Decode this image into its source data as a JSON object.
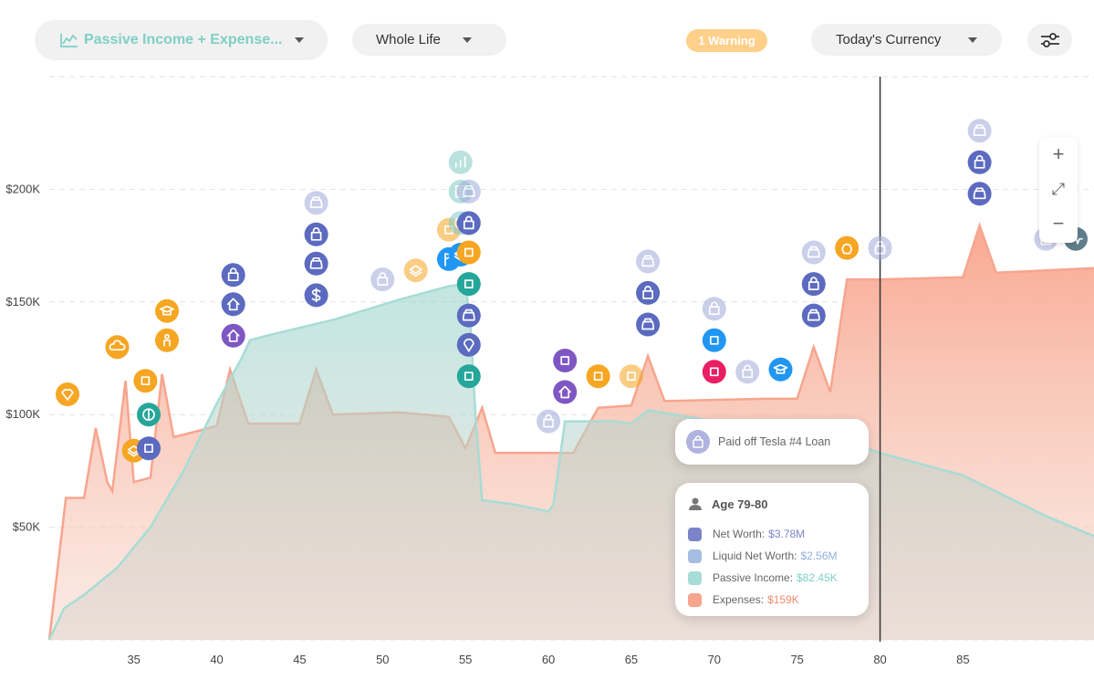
{
  "toolbar": {
    "metric_label": "Passive Income + Expense...",
    "range_label": "Whole Life",
    "warning_label": "1 Warning",
    "currency_label": "Today's Currency",
    "accent_color": "#7fd0c6",
    "warning_color": "#ffd08a"
  },
  "zoom": {
    "in": "+",
    "fit": "⤢",
    "out": "−"
  },
  "event_card": {
    "text": "Paid off Tesla #4 Loan",
    "icon": "loan-icon"
  },
  "tooltip": {
    "age_label": "Age 79-80",
    "rows": [
      {
        "label": "Net Worth:",
        "value": "$3.78M",
        "color": "#7b83c9"
      },
      {
        "label": "Liquid Net Worth:",
        "value": "$2.56M",
        "color": "#a5bde0"
      },
      {
        "label": "Passive Income:",
        "value": "$82.45K",
        "color": "#a8dcd6"
      },
      {
        "label": "Expenses:",
        "value": "$159K",
        "color": "#f7a58e"
      }
    ]
  },
  "chart_data": {
    "type": "area",
    "x_ticks": [
      35,
      40,
      45,
      50,
      55,
      60,
      65,
      70,
      75,
      80,
      85
    ],
    "y_ticks": [
      {
        "value": 50000,
        "label": "$50K"
      },
      {
        "value": 100000,
        "label": "$100K"
      },
      {
        "value": 150000,
        "label": "$150K"
      },
      {
        "value": 200000,
        "label": "$200K"
      }
    ],
    "xlim": [
      29.9,
      92.9
    ],
    "ylim": [
      0,
      250000
    ],
    "cursor_age": 80,
    "series": [
      {
        "color": "#a8dcd6",
        "points": [
          [
            29.9,
            0
          ],
          [
            30.8,
            14000
          ],
          [
            32,
            20000
          ],
          [
            34,
            32000
          ],
          [
            36,
            50000
          ],
          [
            38,
            75000
          ],
          [
            40,
            105000
          ],
          [
            41.5,
            125000
          ],
          [
            42,
            133000
          ],
          [
            43,
            135000
          ],
          [
            47,
            142000
          ],
          [
            51,
            151000
          ],
          [
            54,
            157000
          ],
          [
            55,
            158000
          ],
          [
            55.3,
            140000
          ],
          [
            55.6,
            100000
          ],
          [
            56,
            62000
          ],
          [
            58,
            60000
          ],
          [
            60,
            57000
          ],
          [
            60.3,
            60000
          ],
          [
            61,
            97000
          ],
          [
            64,
            97000
          ],
          [
            65,
            96000
          ],
          [
            66,
            102000
          ],
          [
            70,
            97000
          ],
          [
            75,
            95000
          ],
          [
            80,
            83000
          ],
          [
            85,
            73000
          ],
          [
            90,
            55000
          ],
          [
            92.9,
            46000
          ]
        ]
      },
      {
        "color": "#f7a58e",
        "points": [
          [
            29.9,
            0
          ],
          [
            30.9,
            63000
          ],
          [
            32,
            63000
          ],
          [
            32.7,
            94000
          ],
          [
            33.4,
            70000
          ],
          [
            33.7,
            66000
          ],
          [
            34.5,
            115000
          ],
          [
            35,
            70000
          ],
          [
            36,
            72000
          ],
          [
            36.7,
            118000
          ],
          [
            37.4,
            90000
          ],
          [
            38.5,
            92000
          ],
          [
            40,
            95000
          ],
          [
            40.8,
            120000
          ],
          [
            41.9,
            96000
          ],
          [
            45,
            96000
          ],
          [
            46,
            120000
          ],
          [
            47,
            100000
          ],
          [
            51,
            101000
          ],
          [
            54,
            99000
          ],
          [
            55,
            85000
          ],
          [
            56,
            103000
          ],
          [
            56.8,
            83000
          ],
          [
            61.5,
            83000
          ],
          [
            63,
            103000
          ],
          [
            65,
            104000
          ],
          [
            66,
            126000
          ],
          [
            67,
            106000
          ],
          [
            73,
            107000
          ],
          [
            75,
            107000
          ],
          [
            76,
            130000
          ],
          [
            77,
            110000
          ],
          [
            78,
            160000
          ],
          [
            80,
            160000
          ],
          [
            85,
            161000
          ],
          [
            86,
            184000
          ],
          [
            87,
            163000
          ],
          [
            92.9,
            165000
          ]
        ]
      }
    ]
  },
  "event_markers": [
    {
      "x": 34,
      "y": 130000,
      "icon": "cloud-upload-icon",
      "color": "#f6a623",
      "faded": false
    },
    {
      "x": 31,
      "y": 109000,
      "icon": "diamond-icon",
      "color": "#f6a623",
      "faded": false
    },
    {
      "x": 35.7,
      "y": 115000,
      "icon": "heart-plus-icon",
      "color": "#f6a623",
      "faded": false
    },
    {
      "x": 35.9,
      "y": 100000,
      "icon": "contrast-icon",
      "color": "#26a69a",
      "faded": false
    },
    {
      "x": 35,
      "y": 84000,
      "icon": "layers-icon",
      "color": "#f6a623",
      "faded": false
    },
    {
      "x": 35.9,
      "y": 85000,
      "icon": "rocket-icon",
      "color": "#5c6bc0",
      "faded": false
    },
    {
      "x": 37,
      "y": 146000,
      "icon": "graduation-cap-icon",
      "color": "#f6a623",
      "faded": false
    },
    {
      "x": 37,
      "y": 133000,
      "icon": "child-icon",
      "color": "#f6a623",
      "faded": false
    },
    {
      "x": 41,
      "y": 162000,
      "icon": "loan-icon",
      "color": "#5c6bc0",
      "faded": false
    },
    {
      "x": 41,
      "y": 149000,
      "icon": "house-icon",
      "color": "#5c6bc0",
      "faded": false
    },
    {
      "x": 41,
      "y": 135000,
      "icon": "house-search-icon",
      "color": "#7e57c2",
      "faded": false
    },
    {
      "x": 46,
      "y": 194000,
      "icon": "car-icon",
      "color": "#9fa8da",
      "faded": true
    },
    {
      "x": 46,
      "y": 180000,
      "icon": "loan-icon",
      "color": "#5c6bc0",
      "faded": false
    },
    {
      "x": 46,
      "y": 167000,
      "icon": "car-icon",
      "color": "#5c6bc0",
      "faded": false
    },
    {
      "x": 46,
      "y": 153000,
      "icon": "dollar-icon",
      "color": "#5c6bc0",
      "faded": false
    },
    {
      "x": 50,
      "y": 160000,
      "icon": "loan-icon",
      "color": "#9fa8da",
      "faded": true
    },
    {
      "x": 52,
      "y": 164000,
      "icon": "layers-icon",
      "color": "#f6a623",
      "faded": true
    },
    {
      "x": 54,
      "y": 182000,
      "icon": "gift-icon",
      "color": "#f6a623",
      "faded": true
    },
    {
      "x": 54.7,
      "y": 212000,
      "icon": "bar-chart-icon",
      "color": "#80cbc4",
      "faded": true
    },
    {
      "x": 54.7,
      "y": 199000,
      "icon": "building-icon",
      "color": "#80cbc4",
      "faded": true
    },
    {
      "x": 55.2,
      "y": 199000,
      "icon": "car-icon",
      "color": "#9fa8da",
      "faded": true
    },
    {
      "x": 54.7,
      "y": 185000,
      "icon": "contrast-icon",
      "color": "#80cbc4",
      "faded": true
    },
    {
      "x": 55.2,
      "y": 185000,
      "icon": "loan-icon",
      "color": "#5c6bc0",
      "faded": false
    },
    {
      "x": 54,
      "y": 169000,
      "icon": "flag-icon",
      "color": "#2196f3",
      "faded": false
    },
    {
      "x": 54.7,
      "y": 171000,
      "icon": "layers-icon",
      "color": "#2196f3",
      "faded": false
    },
    {
      "x": 55.2,
      "y": 172000,
      "icon": "heart-hands-icon",
      "color": "#f6a623",
      "faded": false
    },
    {
      "x": 55.2,
      "y": 158000,
      "icon": "person-clock-icon",
      "color": "#26a69a",
      "faded": false
    },
    {
      "x": 55.2,
      "y": 144000,
      "icon": "car-icon",
      "color": "#5c6bc0",
      "faded": false
    },
    {
      "x": 55.2,
      "y": 131000,
      "icon": "location-pin-icon",
      "color": "#5c6bc0",
      "faded": false
    },
    {
      "x": 55.2,
      "y": 117000,
      "icon": "palm-tree-icon",
      "color": "#26a69a",
      "faded": false
    },
    {
      "x": 60,
      "y": 97000,
      "icon": "loan-icon",
      "color": "#9fa8da",
      "faded": true
    },
    {
      "x": 61,
      "y": 124000,
      "icon": "cut-icon",
      "color": "#7e57c2",
      "faded": false
    },
    {
      "x": 61,
      "y": 110000,
      "icon": "house-search-icon",
      "color": "#7e57c2",
      "faded": false
    },
    {
      "x": 63,
      "y": 117000,
      "icon": "medical-bag-icon",
      "color": "#f6a623",
      "faded": false
    },
    {
      "x": 65,
      "y": 117000,
      "icon": "heart-hands-icon",
      "color": "#f6a623",
      "faded": true
    },
    {
      "x": 66,
      "y": 168000,
      "icon": "car-icon",
      "color": "#9fa8da",
      "faded": true
    },
    {
      "x": 66,
      "y": 154000,
      "icon": "loan-icon",
      "color": "#5c6bc0",
      "faded": false
    },
    {
      "x": 66,
      "y": 140000,
      "icon": "car-icon",
      "color": "#5c6bc0",
      "faded": false
    },
    {
      "x": 70,
      "y": 147000,
      "icon": "loan-icon",
      "color": "#9fa8da",
      "faded": true
    },
    {
      "x": 70,
      "y": 133000,
      "icon": "chart-hand-icon",
      "color": "#2196f3",
      "faded": false
    },
    {
      "x": 70,
      "y": 119000,
      "icon": "cut-icon",
      "color": "#e91e63",
      "faded": false
    },
    {
      "x": 72,
      "y": 119000,
      "icon": "loan-icon",
      "color": "#9fa8da",
      "faded": true
    },
    {
      "x": 74,
      "y": 120000,
      "icon": "graduation-cap-icon",
      "color": "#2196f3",
      "faded": false
    },
    {
      "x": 76,
      "y": 172000,
      "icon": "car-icon",
      "color": "#9fa8da",
      "faded": true
    },
    {
      "x": 76,
      "y": 158000,
      "icon": "loan-icon",
      "color": "#5c6bc0",
      "faded": false
    },
    {
      "x": 76,
      "y": 144000,
      "icon": "car-icon",
      "color": "#5c6bc0",
      "faded": false
    },
    {
      "x": 78,
      "y": 174000,
      "icon": "skull-icon",
      "color": "#f6a623",
      "faded": false
    },
    {
      "x": 80,
      "y": 174000,
      "icon": "loan-icon",
      "color": "#9fa8da",
      "faded": true
    },
    {
      "x": 86,
      "y": 226000,
      "icon": "car-icon",
      "color": "#9fa8da",
      "faded": true
    },
    {
      "x": 86,
      "y": 212000,
      "icon": "loan-icon",
      "color": "#5c6bc0",
      "faded": false
    },
    {
      "x": 86,
      "y": 198000,
      "icon": "car-icon",
      "color": "#5c6bc0",
      "faded": false
    },
    {
      "x": 90,
      "y": 178000,
      "icon": "loan-icon",
      "color": "#9fa8da",
      "faded": true
    },
    {
      "x": 91.8,
      "y": 178000,
      "icon": "pulse-icon",
      "color": "#607d8b",
      "faded": false
    }
  ]
}
